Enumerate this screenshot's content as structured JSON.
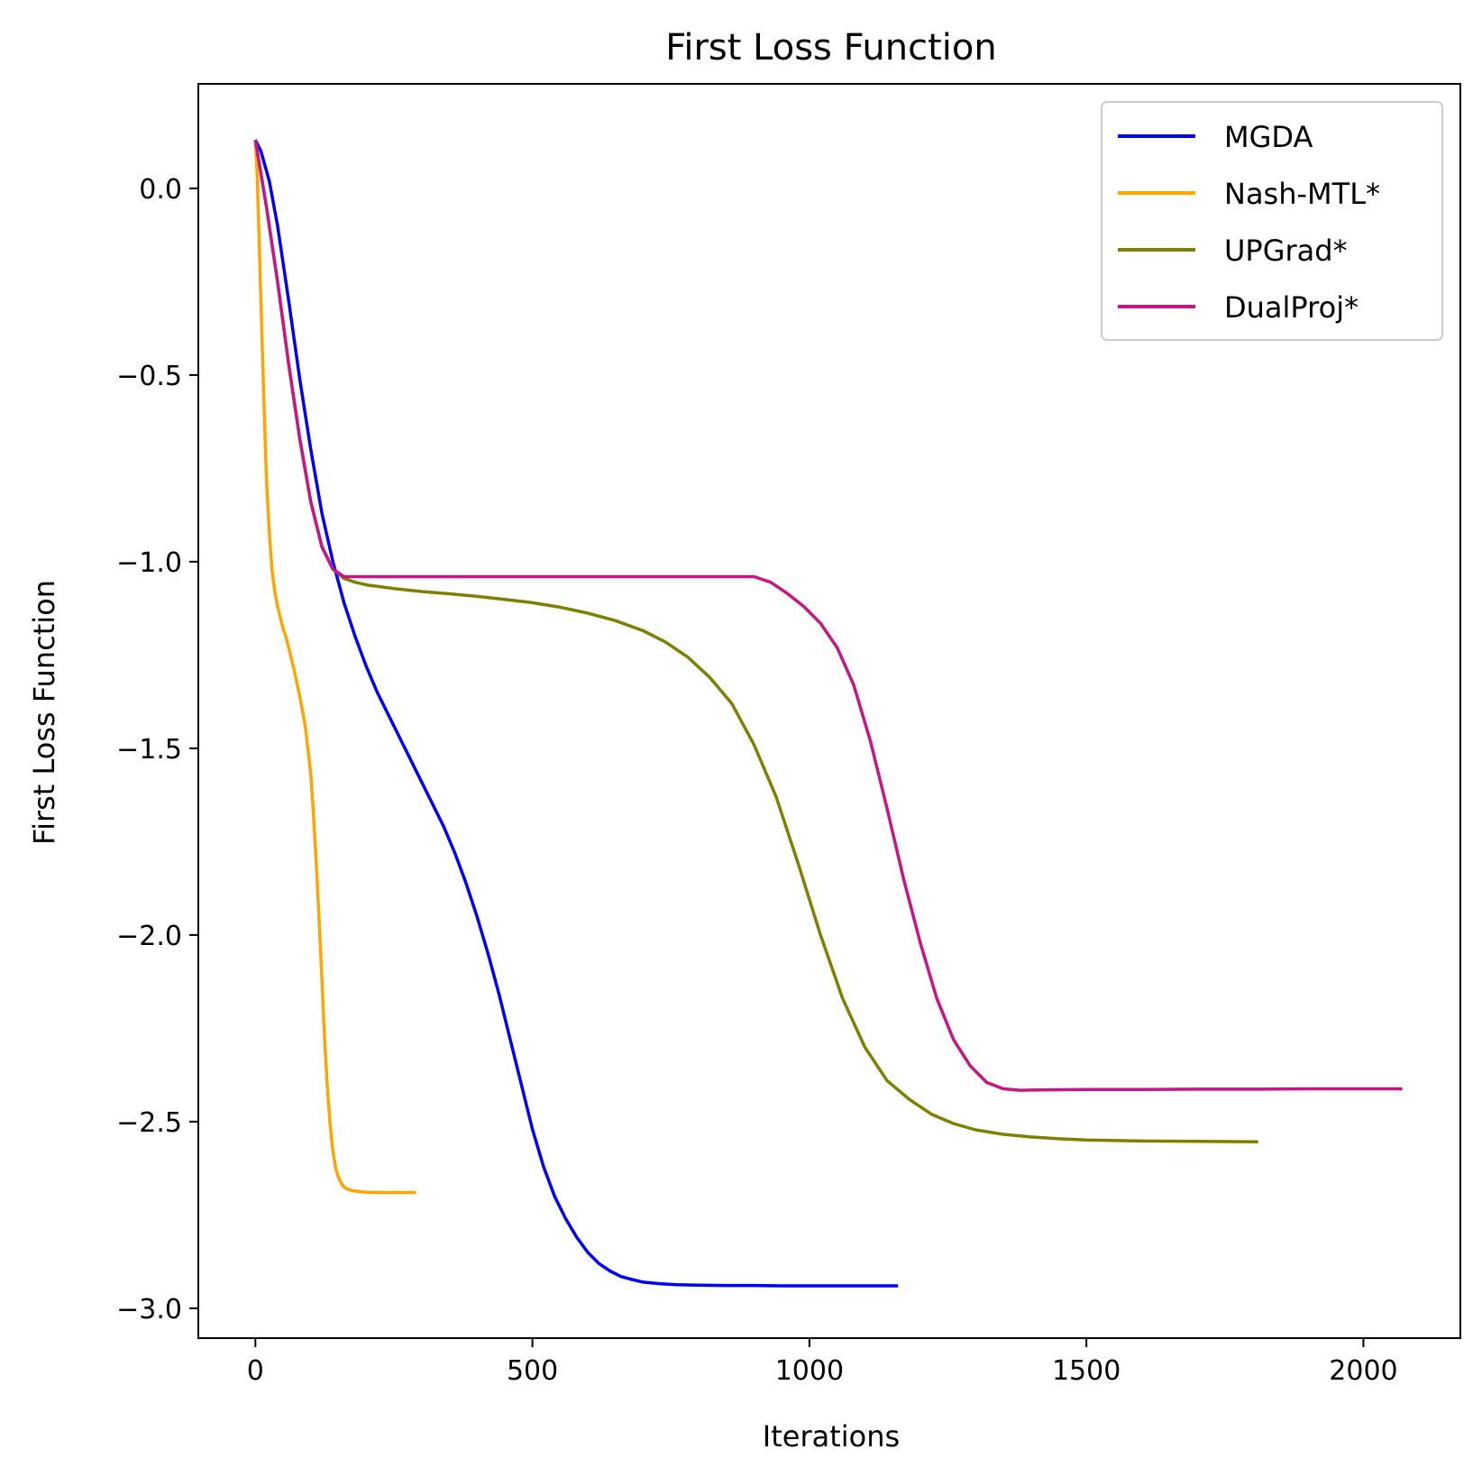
{
  "chart_data": {
    "type": "line",
    "title": "First Loss Function",
    "xlabel": "Iterations",
    "ylabel": "First Loss Function",
    "xlim": [
      -103,
      2175
    ],
    "ylim": [
      -3.08,
      0.28
    ],
    "xticks": [
      0,
      500,
      1000,
      1500,
      2000
    ],
    "xtick_labels": [
      "0",
      "500",
      "1000",
      "1500",
      "2000"
    ],
    "yticks": [
      0.0,
      -0.5,
      -1.0,
      -1.5,
      -2.0,
      -2.5,
      -3.0
    ],
    "ytick_labels": [
      "0.0",
      "−0.5",
      "−1.0",
      "−1.5",
      "−2.0",
      "−2.5",
      "−3.0"
    ],
    "grid": false,
    "legend_position": "upper right",
    "series": [
      {
        "name": "MGDA",
        "color": "#0000ff",
        "x": [
          0,
          10,
          25,
          40,
          60,
          80,
          100,
          120,
          140,
          160,
          180,
          200,
          220,
          240,
          260,
          280,
          300,
          320,
          340,
          360,
          380,
          400,
          420,
          440,
          460,
          480,
          500,
          520,
          540,
          560,
          580,
          600,
          620,
          640,
          660,
          680,
          700,
          730,
          760,
          800,
          850,
          900,
          950,
          1000,
          1050,
          1100,
          1160
        ],
        "y": [
          0.13,
          0.1,
          0.02,
          -0.1,
          -0.3,
          -0.51,
          -0.7,
          -0.87,
          -1.0,
          -1.11,
          -1.2,
          -1.28,
          -1.35,
          -1.41,
          -1.47,
          -1.53,
          -1.59,
          -1.65,
          -1.71,
          -1.78,
          -1.86,
          -1.95,
          -2.05,
          -2.16,
          -2.28,
          -2.4,
          -2.52,
          -2.62,
          -2.7,
          -2.76,
          -2.81,
          -2.85,
          -2.88,
          -2.9,
          -2.915,
          -2.923,
          -2.93,
          -2.934,
          -2.937,
          -2.938,
          -2.939,
          -2.939,
          -2.94,
          -2.94,
          -2.94,
          -2.94,
          -2.94
        ]
      },
      {
        "name": "Nash-MTL*",
        "color": "#ffa500",
        "x": [
          0,
          3,
          6,
          10,
          15,
          20,
          25,
          30,
          35,
          40,
          45,
          50,
          55,
          60,
          70,
          80,
          90,
          100,
          105,
          110,
          115,
          120,
          125,
          130,
          135,
          140,
          145,
          150,
          155,
          160,
          165,
          170,
          175,
          180,
          190,
          200,
          220,
          250,
          290
        ],
        "y": [
          0.13,
          0.05,
          -0.1,
          -0.3,
          -0.55,
          -0.78,
          -0.92,
          -1.02,
          -1.08,
          -1.12,
          -1.15,
          -1.18,
          -1.2,
          -1.23,
          -1.29,
          -1.36,
          -1.44,
          -1.57,
          -1.68,
          -1.81,
          -1.96,
          -2.12,
          -2.28,
          -2.41,
          -2.51,
          -2.58,
          -2.625,
          -2.65,
          -2.665,
          -2.675,
          -2.68,
          -2.683,
          -2.685,
          -2.686,
          -2.688,
          -2.689,
          -2.69,
          -2.69,
          -2.69
        ]
      },
      {
        "name": "UPGrad*",
        "color": "#808000",
        "x": [
          0,
          20,
          40,
          60,
          80,
          100,
          120,
          140,
          160,
          180,
          200,
          250,
          300,
          350,
          400,
          450,
          500,
          550,
          600,
          650,
          700,
          740,
          780,
          820,
          860,
          900,
          940,
          980,
          1020,
          1060,
          1100,
          1140,
          1180,
          1220,
          1260,
          1300,
          1350,
          1400,
          1450,
          1500,
          1600,
          1700,
          1810
        ],
        "y": [
          0.13,
          -0.05,
          -0.25,
          -0.47,
          -0.67,
          -0.84,
          -0.96,
          -1.02,
          -1.045,
          -1.055,
          -1.062,
          -1.072,
          -1.08,
          -1.086,
          -1.093,
          -1.101,
          -1.11,
          -1.122,
          -1.138,
          -1.158,
          -1.185,
          -1.215,
          -1.255,
          -1.31,
          -1.38,
          -1.49,
          -1.63,
          -1.81,
          -2.0,
          -2.17,
          -2.3,
          -2.39,
          -2.44,
          -2.48,
          -2.505,
          -2.522,
          -2.534,
          -2.541,
          -2.546,
          -2.549,
          -2.552,
          -2.553,
          -2.554
        ]
      },
      {
        "name": "DualProj*",
        "color": "#c71585",
        "x": [
          0,
          20,
          40,
          60,
          80,
          100,
          120,
          140,
          160,
          180,
          200,
          300,
          400,
          500,
          600,
          700,
          800,
          900,
          930,
          960,
          990,
          1020,
          1050,
          1080,
          1110,
          1140,
          1170,
          1200,
          1230,
          1260,
          1290,
          1320,
          1350,
          1380,
          1420,
          1500,
          1600,
          1700,
          1800,
          1900,
          2000,
          2070
        ],
        "y": [
          0.13,
          -0.05,
          -0.25,
          -0.47,
          -0.67,
          -0.84,
          -0.96,
          -1.02,
          -1.04,
          -1.04,
          -1.04,
          -1.04,
          -1.04,
          -1.04,
          -1.04,
          -1.04,
          -1.04,
          -1.04,
          -1.055,
          -1.085,
          -1.12,
          -1.165,
          -1.23,
          -1.33,
          -1.48,
          -1.66,
          -1.85,
          -2.02,
          -2.17,
          -2.28,
          -2.35,
          -2.395,
          -2.412,
          -2.416,
          -2.415,
          -2.414,
          -2.414,
          -2.413,
          -2.413,
          -2.412,
          -2.412,
          -2.412
        ]
      }
    ]
  }
}
